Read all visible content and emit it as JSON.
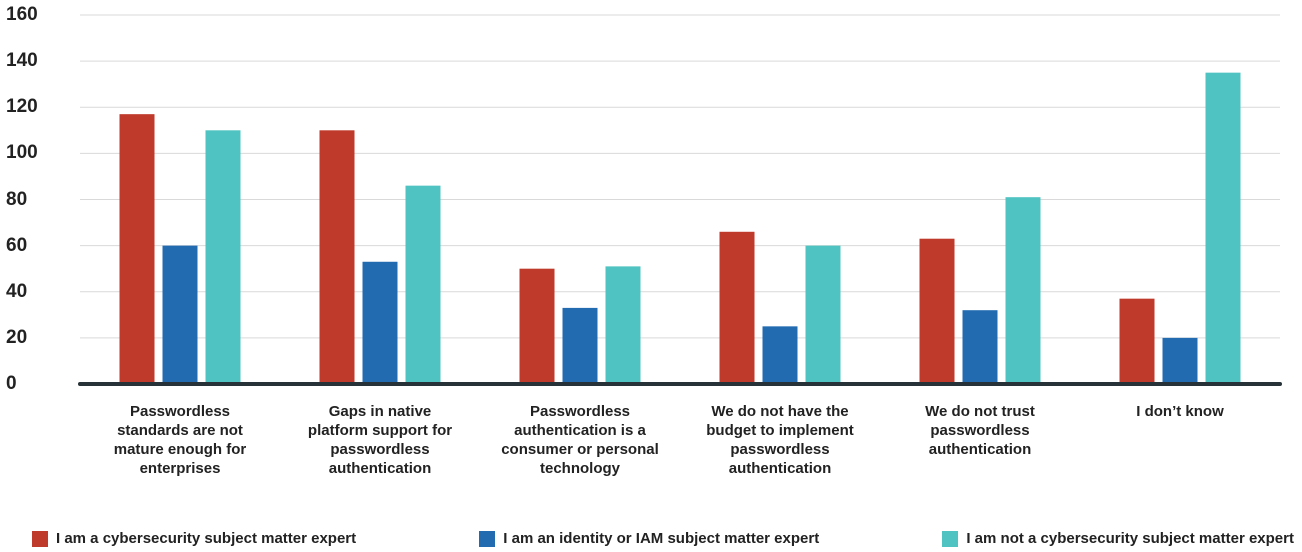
{
  "chart_data": {
    "type": "bar",
    "categories": [
      "Passwordless standards are not mature enough for enterprises",
      "Gaps in native platform support for passwordless authentication",
      "Passwordless authentication is a consumer or personal technology",
      "We do not have the budget to implement passwordless authentication",
      "We do not trust passwordless authentication",
      "I don’t know"
    ],
    "series": [
      {
        "name": "I am a cybersecurity subject matter expert",
        "color": "#bf3a2b",
        "values": [
          117,
          110,
          50,
          66,
          63,
          37
        ]
      },
      {
        "name": "I am an identity or IAM subject matter expert",
        "color": "#236bb0",
        "values": [
          60,
          53,
          33,
          25,
          32,
          20
        ]
      },
      {
        "name": "I am not a cybersecurity subject matter expert",
        "color": "#4fc3c1",
        "values": [
          110,
          86,
          51,
          60,
          81,
          135
        ]
      }
    ],
    "ylim": [
      0,
      160
    ],
    "yticks": [
      0,
      20,
      40,
      60,
      80,
      100,
      120,
      140,
      160
    ],
    "grid": true,
    "legend": "bottom"
  }
}
